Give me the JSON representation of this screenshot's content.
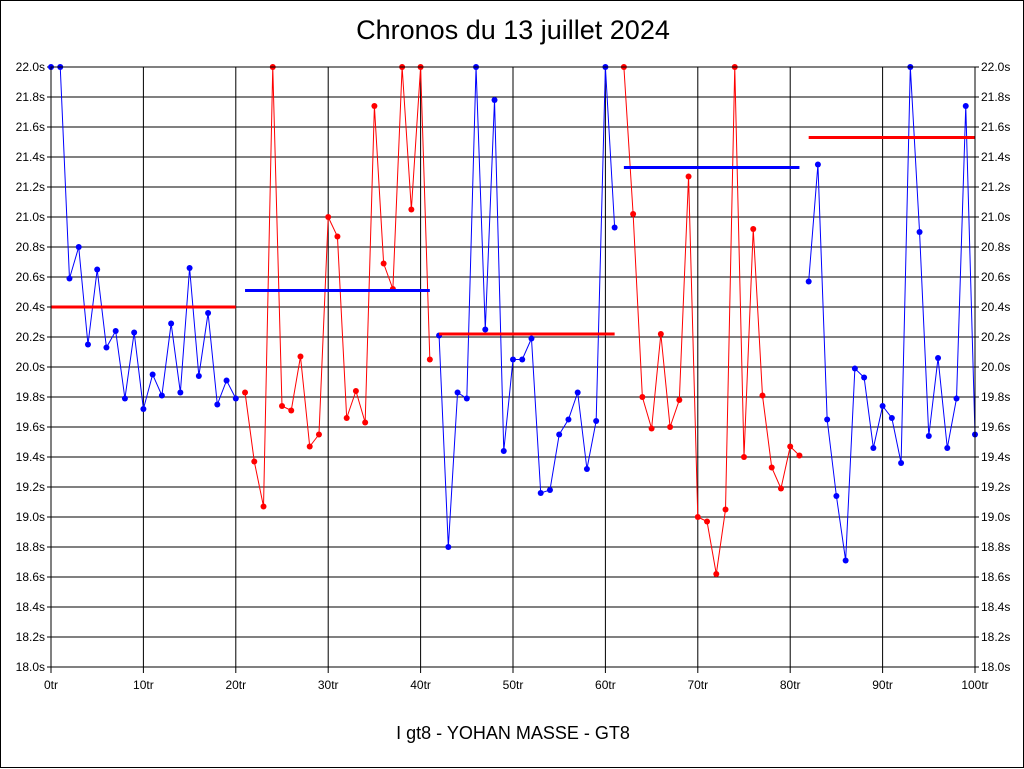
{
  "title": "Chronos du 13 juillet 2024",
  "footer": "I gt8 - YOHAN MASSE - GT8",
  "chart_data": {
    "type": "line",
    "title": "Chronos du 13 juillet 2024",
    "xlabel": "",
    "ylabel": "",
    "xlim": [
      0,
      100
    ],
    "ylim": [
      18.0,
      22.0
    ],
    "x_ticks": [
      "0tr",
      "10tr",
      "20tr",
      "30tr",
      "40tr",
      "50tr",
      "60tr",
      "70tr",
      "80tr",
      "90tr",
      "100tr"
    ],
    "y_ticks": [
      "18.0s",
      "18.2s",
      "18.4s",
      "18.6s",
      "18.8s",
      "19.0s",
      "19.2s",
      "19.4s",
      "19.6s",
      "19.8s",
      "20.0s",
      "20.2s",
      "20.4s",
      "20.6s",
      "20.8s",
      "21.0s",
      "21.2s",
      "21.4s",
      "21.6s",
      "21.8s",
      "22.0s"
    ],
    "grid": true,
    "series": [
      {
        "color": "#0000ff",
        "x": [
          0,
          1,
          2,
          3,
          4,
          5,
          6,
          7,
          8,
          9,
          10,
          11,
          12,
          13,
          14,
          15,
          16,
          17,
          18,
          19,
          20
        ],
        "values": [
          22.0,
          22.0,
          20.59,
          20.8,
          20.15,
          20.65,
          20.13,
          20.24,
          19.79,
          20.23,
          19.72,
          19.95,
          19.81,
          20.29,
          19.83,
          20.66,
          19.94,
          20.36,
          19.75,
          19.91,
          19.79
        ]
      },
      {
        "color": "#ff0000",
        "x": [
          21,
          22,
          23,
          24,
          25,
          26,
          27,
          28,
          29,
          30,
          31,
          32,
          33,
          34,
          35,
          36,
          37,
          38,
          39,
          40,
          41
        ],
        "values": [
          19.83,
          19.37,
          19.07,
          22.0,
          19.74,
          19.71,
          20.07,
          19.47,
          19.55,
          21.0,
          20.87,
          19.66,
          19.84,
          19.63,
          21.74,
          20.69,
          20.52,
          22.0,
          21.05,
          22.0,
          20.05
        ]
      },
      {
        "color": "#0000ff",
        "x": [
          42,
          43,
          44,
          45,
          46,
          47,
          48,
          49,
          50,
          51,
          52,
          53,
          54,
          55,
          56,
          57,
          58,
          59,
          60,
          61
        ],
        "values": [
          20.21,
          18.8,
          19.83,
          19.79,
          22.0,
          20.25,
          21.78,
          19.44,
          20.05,
          20.05,
          20.19,
          19.16,
          19.18,
          19.55,
          19.65,
          19.83,
          19.32,
          19.64,
          22.0,
          20.93
        ]
      },
      {
        "color": "#ff0000",
        "x": [
          62,
          63,
          64,
          65,
          66,
          67,
          68,
          69,
          70,
          71,
          72,
          73,
          74,
          75,
          76,
          77,
          78,
          79,
          80,
          81
        ],
        "values": [
          22.0,
          21.02,
          19.8,
          19.59,
          20.22,
          19.6,
          19.78,
          21.27,
          19.0,
          18.97,
          18.62,
          19.05,
          22.0,
          19.4,
          20.92,
          19.81,
          19.33,
          19.19,
          19.47,
          19.41
        ]
      },
      {
        "color": "#0000ff",
        "x": [
          82,
          83,
          84,
          85,
          86,
          87,
          88,
          89,
          90,
          91,
          92,
          93,
          94,
          95,
          96,
          97,
          98,
          99,
          100
        ],
        "values": [
          20.57,
          21.35,
          19.65,
          19.14,
          18.71,
          19.99,
          19.93,
          19.46,
          19.74,
          19.66,
          19.36,
          22.0,
          20.9,
          19.54,
          20.06,
          19.46,
          19.79,
          21.74,
          19.55
        ]
      }
    ],
    "averages": [
      {
        "color": "#ff0000",
        "x": [
          0,
          20
        ],
        "value": 20.4
      },
      {
        "color": "#0000ff",
        "x": [
          21,
          41
        ],
        "value": 20.51
      },
      {
        "color": "#ff0000",
        "x": [
          42,
          61
        ],
        "value": 20.22
      },
      {
        "color": "#0000ff",
        "x": [
          62,
          81
        ],
        "value": 21.33
      },
      {
        "color": "#ff0000",
        "x": [
          82,
          100
        ],
        "value": 21.53
      }
    ]
  }
}
